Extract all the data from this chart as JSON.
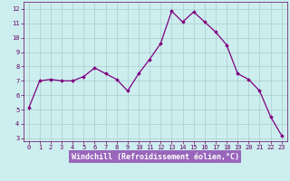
{
  "x": [
    0,
    1,
    2,
    3,
    4,
    5,
    6,
    7,
    8,
    9,
    10,
    11,
    12,
    13,
    14,
    15,
    16,
    17,
    18,
    19,
    20,
    21,
    22,
    23
  ],
  "y": [
    5.1,
    7.0,
    7.1,
    7.0,
    7.0,
    7.3,
    7.9,
    7.5,
    7.1,
    6.3,
    7.5,
    8.5,
    9.6,
    11.85,
    11.1,
    11.8,
    11.1,
    10.4,
    9.5,
    7.5,
    7.1,
    6.3,
    4.5,
    3.2
  ],
  "line_color": "#800080",
  "marker": "D",
  "marker_size": 1.8,
  "bg_color": "#cceeee",
  "grid_color": "#aacccc",
  "xlabel": "Windchill (Refroidissement éolien,°C)",
  "xlim": [
    -0.5,
    23.5
  ],
  "ylim": [
    2.8,
    12.5
  ],
  "yticks": [
    3,
    4,
    5,
    6,
    7,
    8,
    9,
    10,
    11,
    12
  ],
  "xticks": [
    0,
    1,
    2,
    3,
    4,
    5,
    6,
    7,
    8,
    9,
    10,
    11,
    12,
    13,
    14,
    15,
    16,
    17,
    18,
    19,
    20,
    21,
    22,
    23
  ],
  "tick_label_size": 5.0,
  "xlabel_size": 6.0,
  "line_width": 0.9,
  "axis_color": "#660066",
  "xlabel_bg": "#9966aa",
  "bottom_bar_color": "#9966bb"
}
